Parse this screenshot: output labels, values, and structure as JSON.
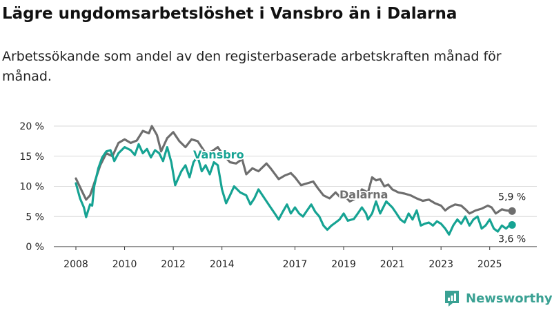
{
  "header": {
    "title": "Lägre ungdomsarbetslöshet i Vansbro än i Dalarna",
    "subtitle": "Arbetssökande som andel av den registerbaserade arbetskraften månad för månad."
  },
  "brand": {
    "name": "Newsworthy"
  },
  "colors": {
    "vansbro": "#16a393",
    "dalarna": "#6e6e6e",
    "grid": "#d9d9d9",
    "axis": "#333333",
    "brand": "#3aa193"
  },
  "chart_data": {
    "type": "line",
    "title": "Lägre ungdomsarbetslöshet i Vansbro än i Dalarna",
    "xlabel": "",
    "ylabel": "",
    "xlim": [
      2008,
      2026
    ],
    "ylim": [
      0,
      20
    ],
    "grid": true,
    "x_ticks": [
      {
        "value": 2008,
        "label": "2008"
      },
      {
        "value": 2010,
        "label": "2010"
      },
      {
        "value": 2012,
        "label": "2012"
      },
      {
        "value": 2014,
        "label": "2014"
      },
      {
        "value": 2017,
        "label": "2017"
      },
      {
        "value": 2019,
        "label": "2019"
      },
      {
        "value": 2021,
        "label": "2021"
      },
      {
        "value": 2023,
        "label": "2023"
      },
      {
        "value": 2025,
        "label": "2025"
      }
    ],
    "y_ticks": [
      {
        "value": 0,
        "label": "0 %"
      },
      {
        "value": 5,
        "label": "5 %"
      },
      {
        "value": 10,
        "label": "10 %"
      },
      {
        "value": 15,
        "label": "15 %"
      },
      {
        "value": 20,
        "label": "20 %"
      }
    ],
    "series": [
      {
        "name": "Dalarna",
        "label": "Dalarna",
        "end_label": "5,9 %",
        "color": "#6e6e6e",
        "points": [
          [
            2008.0,
            11.3
          ],
          [
            2008.25,
            9.2
          ],
          [
            2008.42,
            7.8
          ],
          [
            2008.58,
            8.5
          ],
          [
            2008.75,
            10.5
          ],
          [
            2009.0,
            13.5
          ],
          [
            2009.25,
            15.5
          ],
          [
            2009.5,
            15.0
          ],
          [
            2009.75,
            17.2
          ],
          [
            2010.0,
            17.8
          ],
          [
            2010.25,
            17.2
          ],
          [
            2010.5,
            17.6
          ],
          [
            2010.75,
            19.2
          ],
          [
            2011.0,
            18.8
          ],
          [
            2011.12,
            20.0
          ],
          [
            2011.33,
            18.5
          ],
          [
            2011.5,
            15.8
          ],
          [
            2011.75,
            18.0
          ],
          [
            2012.0,
            19.0
          ],
          [
            2012.25,
            17.5
          ],
          [
            2012.5,
            16.5
          ],
          [
            2012.75,
            17.8
          ],
          [
            2013.0,
            17.5
          ],
          [
            2013.33,
            15.5
          ],
          [
            2013.58,
            15.8
          ],
          [
            2013.83,
            16.5
          ],
          [
            2014.0,
            15.5
          ],
          [
            2014.33,
            14.0
          ],
          [
            2014.58,
            13.8
          ],
          [
            2014.83,
            14.5
          ],
          [
            2015.0,
            12.0
          ],
          [
            2015.25,
            13.0
          ],
          [
            2015.5,
            12.5
          ],
          [
            2015.83,
            13.8
          ],
          [
            2016.0,
            13.0
          ],
          [
            2016.33,
            11.2
          ],
          [
            2016.58,
            11.8
          ],
          [
            2016.83,
            12.2
          ],
          [
            2017.0,
            11.5
          ],
          [
            2017.25,
            10.2
          ],
          [
            2017.5,
            10.5
          ],
          [
            2017.75,
            10.8
          ],
          [
            2017.92,
            9.8
          ],
          [
            2018.17,
            8.5
          ],
          [
            2018.42,
            8.0
          ],
          [
            2018.67,
            9.0
          ],
          [
            2018.83,
            8.3
          ],
          [
            2019.0,
            8.6
          ],
          [
            2019.25,
            7.5
          ],
          [
            2019.5,
            8.0
          ],
          [
            2019.75,
            9.5
          ],
          [
            2020.0,
            9.0
          ],
          [
            2020.17,
            11.5
          ],
          [
            2020.33,
            11.0
          ],
          [
            2020.5,
            11.2
          ],
          [
            2020.67,
            10.0
          ],
          [
            2020.83,
            10.3
          ],
          [
            2021.0,
            9.5
          ],
          [
            2021.25,
            9.0
          ],
          [
            2021.5,
            8.8
          ],
          [
            2021.75,
            8.5
          ],
          [
            2022.0,
            8.0
          ],
          [
            2022.25,
            7.6
          ],
          [
            2022.5,
            7.8
          ],
          [
            2022.75,
            7.2
          ],
          [
            2023.0,
            6.8
          ],
          [
            2023.17,
            6.0
          ],
          [
            2023.33,
            6.5
          ],
          [
            2023.58,
            7.0
          ],
          [
            2023.83,
            6.8
          ],
          [
            2024.0,
            6.2
          ],
          [
            2024.17,
            5.5
          ],
          [
            2024.42,
            6.0
          ],
          [
            2024.67,
            6.3
          ],
          [
            2024.92,
            6.8
          ],
          [
            2025.08,
            6.5
          ],
          [
            2025.25,
            5.5
          ],
          [
            2025.5,
            6.2
          ],
          [
            2025.67,
            6.0
          ],
          [
            2025.92,
            5.9
          ]
        ]
      },
      {
        "name": "Vansbro",
        "label": "Vansbro",
        "end_label": "3,6 %",
        "color": "#16a393",
        "points": [
          [
            2008.0,
            10.5
          ],
          [
            2008.17,
            8.0
          ],
          [
            2008.33,
            6.5
          ],
          [
            2008.42,
            4.9
          ],
          [
            2008.58,
            7.0
          ],
          [
            2008.67,
            6.8
          ],
          [
            2008.75,
            10.0
          ],
          [
            2008.92,
            13.0
          ],
          [
            2009.08,
            14.8
          ],
          [
            2009.25,
            15.8
          ],
          [
            2009.42,
            16.0
          ],
          [
            2009.58,
            14.2
          ],
          [
            2009.75,
            15.5
          ],
          [
            2010.0,
            16.5
          ],
          [
            2010.25,
            16.0
          ],
          [
            2010.42,
            15.2
          ],
          [
            2010.58,
            17.0
          ],
          [
            2010.75,
            15.5
          ],
          [
            2010.92,
            16.2
          ],
          [
            2011.08,
            14.8
          ],
          [
            2011.25,
            16.0
          ],
          [
            2011.42,
            15.5
          ],
          [
            2011.58,
            14.2
          ],
          [
            2011.75,
            16.5
          ],
          [
            2011.92,
            14.0
          ],
          [
            2012.08,
            10.2
          ],
          [
            2012.33,
            12.5
          ],
          [
            2012.5,
            13.5
          ],
          [
            2012.67,
            11.5
          ],
          [
            2012.83,
            14.0
          ],
          [
            2013.0,
            15.0
          ],
          [
            2013.17,
            12.5
          ],
          [
            2013.33,
            13.5
          ],
          [
            2013.5,
            12.0
          ],
          [
            2013.67,
            14.0
          ],
          [
            2013.83,
            13.5
          ],
          [
            2014.0,
            9.5
          ],
          [
            2014.17,
            7.2
          ],
          [
            2014.33,
            8.5
          ],
          [
            2014.5,
            10.0
          ],
          [
            2014.75,
            9.0
          ],
          [
            2015.0,
            8.5
          ],
          [
            2015.17,
            7.0
          ],
          [
            2015.33,
            8.0
          ],
          [
            2015.5,
            9.5
          ],
          [
            2015.75,
            8.0
          ],
          [
            2016.0,
            6.5
          ],
          [
            2016.17,
            5.5
          ],
          [
            2016.33,
            4.5
          ],
          [
            2016.5,
            5.8
          ],
          [
            2016.67,
            7.0
          ],
          [
            2016.83,
            5.5
          ],
          [
            2017.0,
            6.5
          ],
          [
            2017.17,
            5.5
          ],
          [
            2017.33,
            5.0
          ],
          [
            2017.5,
            6.0
          ],
          [
            2017.67,
            7.0
          ],
          [
            2017.83,
            5.8
          ],
          [
            2018.0,
            5.0
          ],
          [
            2018.17,
            3.5
          ],
          [
            2018.33,
            2.8
          ],
          [
            2018.5,
            3.5
          ],
          [
            2018.67,
            4.0
          ],
          [
            2018.83,
            4.5
          ],
          [
            2019.0,
            5.5
          ],
          [
            2019.17,
            4.3
          ],
          [
            2019.42,
            4.6
          ],
          [
            2019.58,
            5.5
          ],
          [
            2019.75,
            6.5
          ],
          [
            2019.92,
            5.5
          ],
          [
            2020.0,
            4.5
          ],
          [
            2020.17,
            5.5
          ],
          [
            2020.33,
            7.5
          ],
          [
            2020.5,
            5.5
          ],
          [
            2020.75,
            7.5
          ],
          [
            2021.0,
            6.5
          ],
          [
            2021.17,
            5.5
          ],
          [
            2021.33,
            4.5
          ],
          [
            2021.5,
            4.0
          ],
          [
            2021.67,
            5.5
          ],
          [
            2021.83,
            4.5
          ],
          [
            2022.0,
            6.0
          ],
          [
            2022.17,
            3.5
          ],
          [
            2022.33,
            3.8
          ],
          [
            2022.5,
            4.0
          ],
          [
            2022.67,
            3.5
          ],
          [
            2022.83,
            4.2
          ],
          [
            2023.0,
            3.8
          ],
          [
            2023.17,
            3.0
          ],
          [
            2023.33,
            2.0
          ],
          [
            2023.5,
            3.5
          ],
          [
            2023.67,
            4.5
          ],
          [
            2023.83,
            3.8
          ],
          [
            2024.0,
            5.0
          ],
          [
            2024.17,
            3.5
          ],
          [
            2024.33,
            4.5
          ],
          [
            2024.5,
            5.0
          ],
          [
            2024.67,
            3.0
          ],
          [
            2024.83,
            3.5
          ],
          [
            2025.0,
            4.5
          ],
          [
            2025.17,
            3.0
          ],
          [
            2025.33,
            2.5
          ],
          [
            2025.5,
            3.5
          ],
          [
            2025.67,
            3.0
          ],
          [
            2025.83,
            3.6
          ],
          [
            2025.92,
            3.6
          ]
        ]
      }
    ]
  }
}
